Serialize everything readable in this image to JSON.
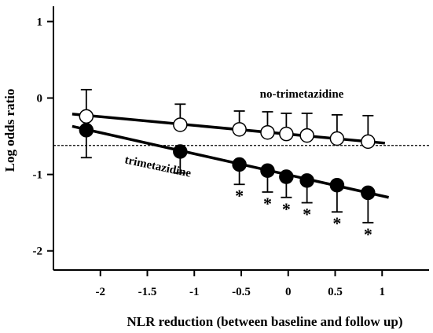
{
  "chart_data": {
    "type": "scatter",
    "xlabel": "NLR reduction (between baseline and follow up)",
    "ylabel": "Log odds ratio",
    "xlim": [
      -2.5,
      1.5
    ],
    "ylim": [
      -2.25,
      1.2
    ],
    "x_ticks": [
      -2,
      -1.5,
      -1,
      -0.5,
      0,
      0.5,
      1
    ],
    "x_tick_labels": [
      "-2",
      "-1.5",
      "-1",
      "-0.5",
      "0",
      "0.5",
      "1"
    ],
    "y_ticks": [
      1,
      0,
      -1,
      -2
    ],
    "y_tick_labels": [
      "1",
      "0",
      "-1",
      "-2"
    ],
    "reference_line": {
      "y": -0.62,
      "style": "dashed"
    },
    "series": [
      {
        "name": "no-trimetazidine",
        "marker": "open-circle",
        "x": [
          -2.15,
          -1.15,
          -0.52,
          -0.22,
          -0.02,
          0.2,
          0.52,
          0.85
        ],
        "y": [
          -0.24,
          -0.35,
          -0.41,
          -0.45,
          -0.47,
          -0.49,
          -0.53,
          -0.57
        ],
        "error_upper": [
          0.11,
          -0.08,
          -0.17,
          -0.18,
          -0.2,
          -0.2,
          -0.22,
          -0.23
        ],
        "fit_line": {
          "x": [
            -2.3,
            1.03
          ],
          "y": [
            -0.21,
            -0.59
          ]
        }
      },
      {
        "name": "trimetazidine",
        "marker": "filled-circle",
        "x": [
          -2.15,
          -1.15,
          -0.52,
          -0.22,
          -0.02,
          0.2,
          0.52,
          0.85
        ],
        "y": [
          -0.42,
          -0.7,
          -0.87,
          -0.95,
          -1.03,
          -1.08,
          -1.14,
          -1.24
        ],
        "error_lower": [
          -0.78,
          -0.98,
          -1.13,
          -1.23,
          -1.3,
          -1.37,
          -1.49,
          -1.63
        ],
        "fit_line": {
          "x": [
            -2.3,
            1.07
          ],
          "y": [
            -0.37,
            -1.3
          ]
        },
        "significant_marker": "*",
        "significant_x": [
          -0.52,
          -0.22,
          -0.02,
          0.2,
          0.52,
          0.85
        ]
      }
    ]
  }
}
